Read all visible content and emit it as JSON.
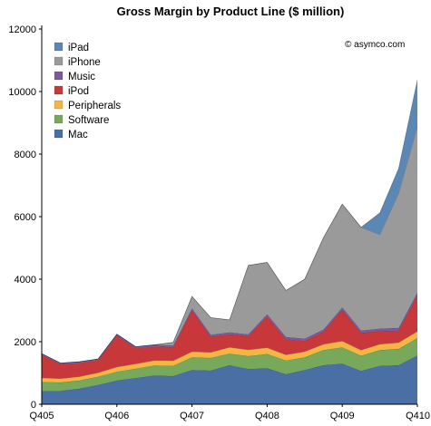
{
  "chart_data": {
    "type": "area",
    "stacked": true,
    "title": "Gross Margin by Product Line ($ million)",
    "credit": "© asymco.com",
    "xlabel": "",
    "ylabel": "",
    "ylim": [
      0,
      12000
    ],
    "yticks": [
      0,
      2000,
      4000,
      6000,
      8000,
      10000,
      12000
    ],
    "grid": false,
    "legend_position": "top-left",
    "x_tick_labels": [
      "Q405",
      "Q406",
      "Q407",
      "Q408",
      "Q409",
      "Q410"
    ],
    "x_tick_indices": [
      0,
      4,
      8,
      12,
      16,
      20
    ],
    "x_count": 21,
    "series": [
      {
        "name": "Mac",
        "color": "#4a6fa5",
        "values": [
          420,
          430,
          500,
          620,
          760,
          840,
          920,
          900,
          1100,
          1080,
          1250,
          1130,
          1150,
          960,
          1100,
          1250,
          1300,
          1070,
          1230,
          1250,
          1560
        ]
      },
      {
        "name": "Software",
        "color": "#78a85a",
        "values": [
          290,
          270,
          260,
          260,
          280,
          300,
          320,
          330,
          400,
          400,
          370,
          410,
          460,
          440,
          400,
          480,
          520,
          480,
          500,
          520,
          560
        ]
      },
      {
        "name": "Peripherals",
        "color": "#f2b642",
        "values": [
          130,
          120,
          120,
          130,
          150,
          150,
          160,
          160,
          180,
          180,
          200,
          200,
          200,
          180,
          180,
          190,
          200,
          180,
          190,
          200,
          210
        ]
      },
      {
        "name": "iPod",
        "color": "#c8373a",
        "values": [
          740,
          460,
          440,
          400,
          1000,
          500,
          450,
          440,
          1330,
          500,
          420,
          440,
          1000,
          500,
          350,
          400,
          1000,
          550,
          420,
          390,
          1150
        ]
      },
      {
        "name": "Music",
        "color": "#7b5a9c",
        "values": [
          40,
          40,
          40,
          40,
          50,
          50,
          50,
          50,
          60,
          60,
          60,
          60,
          70,
          70,
          70,
          70,
          80,
          80,
          80,
          80,
          90
        ]
      },
      {
        "name": "iPhone",
        "color": "#9a9a9a",
        "values": [
          0,
          0,
          0,
          0,
          0,
          0,
          0,
          100,
          380,
          550,
          400,
          2200,
          1660,
          1490,
          1900,
          2940,
          3300,
          3300,
          3000,
          4300,
          5300
        ]
      },
      {
        "name": "iPad",
        "color": "#5b87b5",
        "values": [
          0,
          0,
          0,
          0,
          0,
          0,
          0,
          0,
          0,
          0,
          0,
          0,
          0,
          0,
          0,
          0,
          0,
          0,
          700,
          800,
          1500
        ]
      }
    ]
  }
}
